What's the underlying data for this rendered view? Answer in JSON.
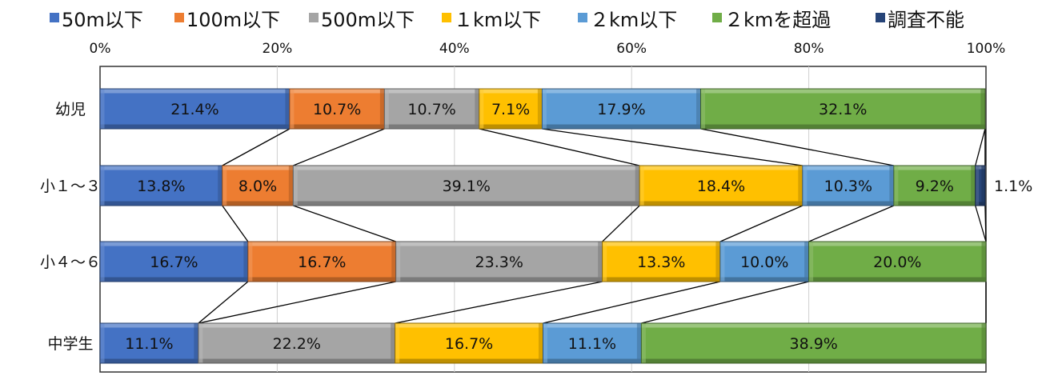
{
  "chart_data": {
    "type": "bar",
    "orientation": "horizontal",
    "stacked": "percent",
    "categories": [
      "幼児",
      "小１～３",
      "小４～６",
      "中学生"
    ],
    "series": [
      {
        "name": "50m以下",
        "values": [
          21.4,
          13.8,
          16.7,
          11.1
        ],
        "labels": [
          "21.4%",
          "13.8%",
          "16.7%",
          "11.1%"
        ]
      },
      {
        "name": "100m以下",
        "values": [
          10.7,
          8.0,
          16.7,
          0
        ],
        "labels": [
          "10.7%",
          "8.0%",
          "16.7%",
          ""
        ]
      },
      {
        "name": "500m以下",
        "values": [
          10.7,
          39.1,
          23.3,
          22.2
        ],
        "labels": [
          "10.7%",
          "39.1%",
          "23.3%",
          "22.2%"
        ]
      },
      {
        "name": "１km以下",
        "values": [
          7.1,
          18.4,
          13.3,
          16.7
        ],
        "labels": [
          "7.1%",
          "18.4%",
          "13.3%",
          "16.7%"
        ]
      },
      {
        "name": "２km以下",
        "values": [
          17.9,
          10.3,
          10.0,
          11.1
        ],
        "labels": [
          "17.9%",
          "10.3%",
          "10.0%",
          "11.1%"
        ]
      },
      {
        "name": "２kmを超過",
        "values": [
          32.1,
          9.2,
          20.0,
          38.9
        ],
        "labels": [
          "32.1%",
          "9.2%",
          "20.0%",
          "38.9%"
        ]
      },
      {
        "name": "調査不能",
        "values": [
          0,
          1.1,
          0,
          0
        ],
        "labels": [
          "",
          "1.1%",
          "",
          ""
        ]
      }
    ],
    "xaxis": {
      "ticks": [
        "0%",
        "20%",
        "40%",
        "60%",
        "80%",
        "100%"
      ],
      "position": "top"
    },
    "xlim": [
      0,
      100
    ],
    "grid": true,
    "series_lines": true,
    "legend": "top",
    "colors": [
      "#4472C4",
      "#ED7D31",
      "#A5A5A5",
      "#FFC000",
      "#5B9BD5",
      "#70AD47",
      "#264478"
    ]
  }
}
